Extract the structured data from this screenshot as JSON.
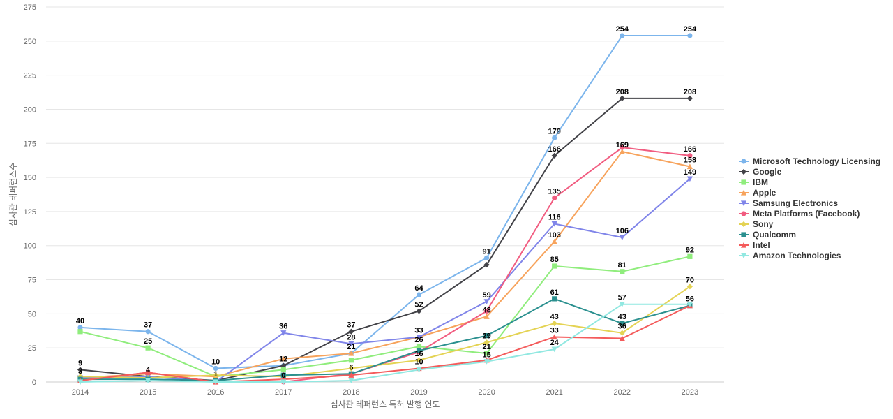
{
  "chart_data": {
    "type": "line",
    "x": [
      2014,
      2015,
      2016,
      2017,
      2018,
      2019,
      2020,
      2021,
      2022,
      2023
    ],
    "xlabel": "심사관 레퍼런스 특허 발행 연도",
    "ylabel": "심사관 레퍼런스수",
    "ylim": [
      0,
      275
    ],
    "yticks": [
      0,
      25,
      50,
      75,
      100,
      125,
      150,
      175,
      200,
      225,
      250,
      275
    ],
    "grid": true,
    "legend_position": "right",
    "series": [
      {
        "name": "Microsoft Technology Licensing",
        "color": "#7cb5ec",
        "marker": "circle",
        "values": [
          40,
          37,
          10,
          12,
          21,
          64,
          91,
          179,
          254,
          254
        ]
      },
      {
        "name": "Google",
        "color": "#434348",
        "marker": "diamond",
        "values": [
          9,
          4,
          1,
          12,
          37,
          52,
          86,
          166,
          208,
          208
        ]
      },
      {
        "name": "IBM",
        "color": "#90ed7d",
        "marker": "square",
        "values": [
          37,
          25,
          4,
          9,
          16,
          26,
          21,
          85,
          81,
          92
        ]
      },
      {
        "name": "Apple",
        "color": "#f7a35c",
        "marker": "triangle",
        "values": [
          3,
          6,
          4,
          17,
          21,
          33,
          48,
          103,
          169,
          158
        ]
      },
      {
        "name": "Samsung Electronics",
        "color": "#8085e9",
        "marker": "triangle-down",
        "values": [
          3,
          4,
          0,
          36,
          28,
          33,
          59,
          116,
          106,
          149
        ]
      },
      {
        "name": "Meta Platforms (Facebook)",
        "color": "#f15c80",
        "marker": "circle",
        "values": [
          1,
          7,
          0,
          0,
          6,
          22,
          52,
          135,
          172,
          166
        ]
      },
      {
        "name": "Sony",
        "color": "#e4d354",
        "marker": "diamond",
        "values": [
          4,
          3,
          5,
          4,
          10,
          16,
          29,
          43,
          36,
          70
        ]
      },
      {
        "name": "Qualcomm",
        "color": "#2b908f",
        "marker": "square",
        "values": [
          2,
          2,
          1,
          5,
          6,
          23,
          34,
          61,
          43,
          56
        ]
      },
      {
        "name": "Intel",
        "color": "#f45b5b",
        "marker": "triangle",
        "values": [
          1,
          7,
          0,
          2,
          5,
          10,
          16,
          33,
          32,
          56
        ]
      },
      {
        "name": "Amazon Technologies",
        "color": "#91e8e1",
        "marker": "triangle-down",
        "values": [
          0,
          1,
          0,
          0,
          1,
          9,
          15,
          24,
          57,
          57
        ]
      }
    ],
    "labels": [
      {
        "x": 2014,
        "y": 40,
        "text": "40"
      },
      {
        "x": 2015,
        "y": 37,
        "text": "37"
      },
      {
        "x": 2016,
        "y": 10,
        "text": "10"
      },
      {
        "x": 2017,
        "y": 36,
        "text": "36"
      },
      {
        "x": 2018,
        "y": 37,
        "text": "37"
      },
      {
        "x": 2019,
        "y": 64,
        "text": "64"
      },
      {
        "x": 2020,
        "y": 91,
        "text": "91"
      },
      {
        "x": 2021,
        "y": 179,
        "text": "179"
      },
      {
        "x": 2022,
        "y": 254,
        "text": "254"
      },
      {
        "x": 2023,
        "y": 254,
        "text": "254"
      },
      {
        "x": 2015,
        "y": 25,
        "text": "25"
      },
      {
        "x": 2019,
        "y": 52,
        "text": "52"
      },
      {
        "x": 2020,
        "y": 59,
        "text": "59"
      },
      {
        "x": 2021,
        "y": 166,
        "text": "166"
      },
      {
        "x": 2022,
        "y": 208,
        "text": "208"
      },
      {
        "x": 2023,
        "y": 208,
        "text": "208"
      },
      {
        "x": 2014,
        "y": 9,
        "text": "9"
      },
      {
        "x": 2014,
        "y": 3,
        "text": "3"
      },
      {
        "x": 2015,
        "y": 4,
        "text": "4"
      },
      {
        "x": 2016,
        "y": 1,
        "text": "1"
      },
      {
        "x": 2017,
        "y": 12,
        "text": "12"
      },
      {
        "x": 2017,
        "y": 0,
        "text": "0"
      },
      {
        "x": 2018,
        "y": 28,
        "text": "28"
      },
      {
        "x": 2018,
        "y": 21,
        "text": "21"
      },
      {
        "x": 2018,
        "y": 6,
        "text": "6"
      },
      {
        "x": 2019,
        "y": 33,
        "text": "33"
      },
      {
        "x": 2019,
        "y": 26,
        "text": "26"
      },
      {
        "x": 2019,
        "y": 16,
        "text": "16"
      },
      {
        "x": 2019,
        "y": 10,
        "text": "10"
      },
      {
        "x": 2020,
        "y": 48,
        "text": "48"
      },
      {
        "x": 2020,
        "y": 29,
        "text": "29"
      },
      {
        "x": 2020,
        "y": 21,
        "text": "21"
      },
      {
        "x": 2020,
        "y": 15,
        "text": "15"
      },
      {
        "x": 2021,
        "y": 135,
        "text": "135"
      },
      {
        "x": 2021,
        "y": 116,
        "text": "116"
      },
      {
        "x": 2021,
        "y": 103,
        "text": "103"
      },
      {
        "x": 2021,
        "y": 85,
        "text": "85"
      },
      {
        "x": 2021,
        "y": 61,
        "text": "61"
      },
      {
        "x": 2021,
        "y": 43,
        "text": "43"
      },
      {
        "x": 2021,
        "y": 33,
        "text": "33"
      },
      {
        "x": 2021,
        "y": 24,
        "text": "24"
      },
      {
        "x": 2022,
        "y": 169,
        "text": "169"
      },
      {
        "x": 2022,
        "y": 106,
        "text": "106"
      },
      {
        "x": 2022,
        "y": 81,
        "text": "81"
      },
      {
        "x": 2022,
        "y": 57,
        "text": "57"
      },
      {
        "x": 2022,
        "y": 43,
        "text": "43"
      },
      {
        "x": 2022,
        "y": 36,
        "text": "36"
      },
      {
        "x": 2023,
        "y": 166,
        "text": "166"
      },
      {
        "x": 2023,
        "y": 158,
        "text": "158"
      },
      {
        "x": 2023,
        "y": 149,
        "text": "149"
      },
      {
        "x": 2023,
        "y": 92,
        "text": "92"
      },
      {
        "x": 2023,
        "y": 70,
        "text": "70"
      },
      {
        "x": 2023,
        "y": 56,
        "text": "56"
      }
    ]
  }
}
